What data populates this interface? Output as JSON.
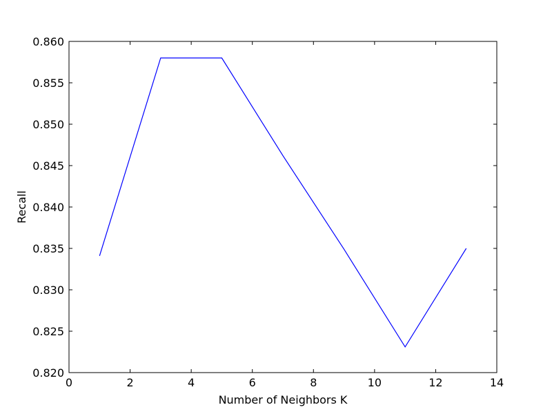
{
  "chart_data": {
    "type": "line",
    "title": "",
    "xlabel": "Number of Neighbors K",
    "ylabel": "Recall",
    "xlim": [
      0,
      14
    ],
    "ylim": [
      0.82,
      0.86
    ],
    "xticks": [
      0,
      2,
      4,
      6,
      8,
      10,
      12,
      14
    ],
    "xtick_labels": [
      "0",
      "2",
      "4",
      "6",
      "8",
      "10",
      "12",
      "14"
    ],
    "yticks": [
      0.82,
      0.825,
      0.83,
      0.835,
      0.84,
      0.845,
      0.85,
      0.855,
      0.86
    ],
    "ytick_labels": [
      "0.820",
      "0.825",
      "0.830",
      "0.835",
      "0.840",
      "0.845",
      "0.850",
      "0.855",
      "0.860"
    ],
    "grid": false,
    "legend": false,
    "series": [
      {
        "color": "#0000ff",
        "x": [
          1,
          3,
          5,
          7,
          9,
          11,
          13
        ],
        "y": [
          0.8341,
          0.858,
          0.858,
          0.8462,
          0.8349,
          0.8231,
          0.835
        ]
      }
    ]
  }
}
